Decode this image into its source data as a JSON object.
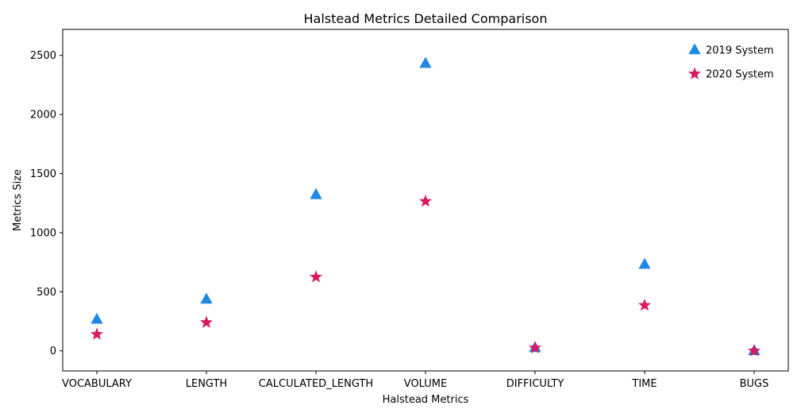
{
  "chart_data": {
    "type": "scatter",
    "title": "Halstead Metrics Detailed Comparison",
    "xlabel": "Halstead Metrics",
    "ylabel": "Metrics Size",
    "categories": [
      "VOCABULARY",
      "LENGTH",
      "CALCULATED_LENGTH",
      "VOLUME",
      "DIFFICULTY",
      "TIME",
      "BUGS"
    ],
    "yticks": [
      0,
      500,
      1000,
      1500,
      2000,
      2500
    ],
    "ylim": [
      -170,
      2720
    ],
    "grid": false,
    "legend_position": "top-right",
    "series": [
      {
        "name": "2019 System",
        "marker": "triangle",
        "color": "#1E88E5",
        "values": [
          265,
          435,
          1320,
          2430,
          25,
          730,
          0
        ]
      },
      {
        "name": "2020 System",
        "marker": "star",
        "color": "#D81B60",
        "values": [
          140,
          240,
          625,
          1265,
          25,
          385,
          0
        ]
      }
    ]
  }
}
